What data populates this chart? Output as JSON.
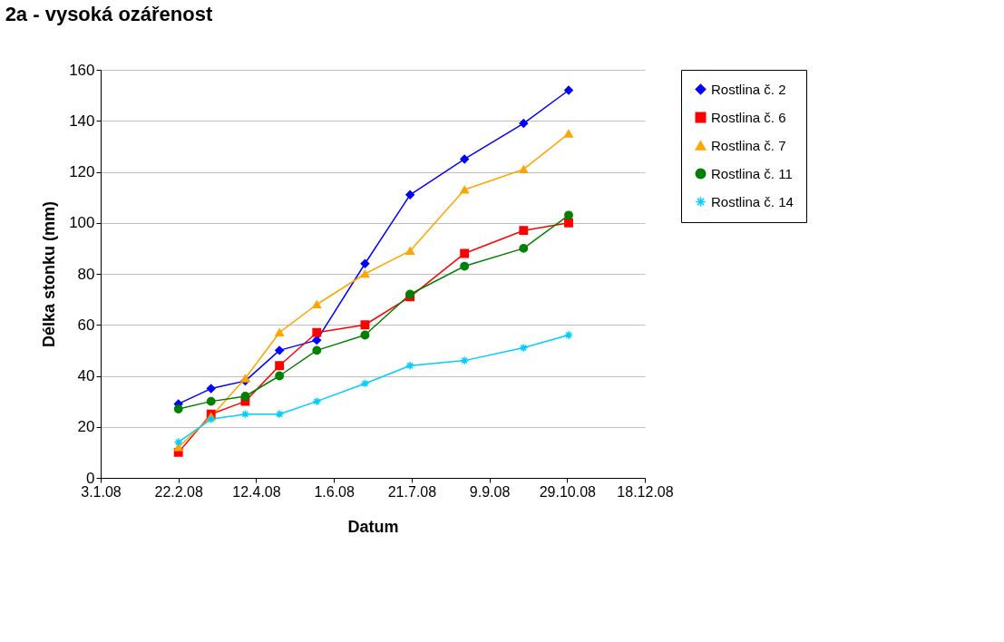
{
  "chart_data": {
    "type": "line",
    "title": "2a - vysoká ozářenost",
    "xlabel": "Datum",
    "ylabel": "Délka stonku (mm)",
    "x": [
      "2008-02-22",
      "2008-03-14",
      "2008-04-05",
      "2008-04-27",
      "2008-05-21",
      "2008-06-21",
      "2008-07-20",
      "2008-08-24",
      "2008-10-01",
      "2008-10-30"
    ],
    "series": [
      {
        "name": "Rostlina č. 2",
        "color": "#0000ff",
        "marker": "diamond",
        "values": [
          29,
          35,
          38,
          50,
          54,
          84,
          111,
          125,
          139,
          152
        ]
      },
      {
        "name": "Rostlina č. 6",
        "color": "#ff0000",
        "marker": "square",
        "values": [
          10,
          25,
          30,
          44,
          57,
          60,
          71,
          88,
          97,
          100
        ]
      },
      {
        "name": "Rostlina č. 7",
        "color": "#ffa500",
        "marker": "triangle",
        "values": [
          12,
          24,
          39,
          57,
          68,
          80,
          89,
          113,
          121,
          135
        ]
      },
      {
        "name": "Rostlina č. 11",
        "color": "#008000",
        "marker": "circle",
        "values": [
          27,
          30,
          32,
          40,
          50,
          56,
          72,
          83,
          90,
          103
        ]
      },
      {
        "name": "Rostlina č. 14",
        "color": "#00ccff",
        "marker": "cross",
        "values": [
          14,
          23,
          25,
          25,
          30,
          37,
          44,
          46,
          51,
          56
        ]
      }
    ],
    "xlim": [
      "2008-01-03",
      "2008-12-18"
    ],
    "xticks": [
      {
        "value": "2008-01-03",
        "label": "3.1.08"
      },
      {
        "value": "2008-02-22",
        "label": "22.2.08"
      },
      {
        "value": "2008-04-12",
        "label": "12.4.08"
      },
      {
        "value": "2008-06-01",
        "label": "1.6.08"
      },
      {
        "value": "2008-07-21",
        "label": "21.7.08"
      },
      {
        "value": "2008-09-09",
        "label": "9.9.08"
      },
      {
        "value": "2008-10-29",
        "label": "29.10.08"
      },
      {
        "value": "2008-12-18",
        "label": "18.12.08"
      }
    ],
    "ylim": [
      0,
      160
    ],
    "yticks": [
      0,
      20,
      40,
      60,
      80,
      100,
      120,
      140,
      160
    ],
    "grid": "y",
    "legend": "right",
    "line_style": "solid"
  }
}
